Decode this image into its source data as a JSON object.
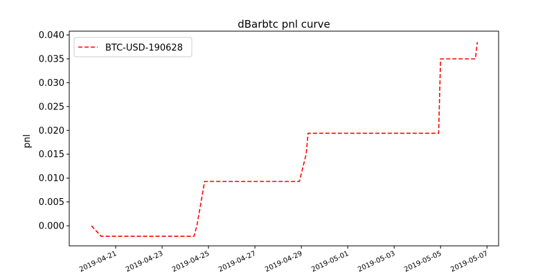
{
  "chart_data": {
    "type": "line",
    "title": "dBarbtc pnl curve",
    "xlabel": "",
    "ylabel": "pnl",
    "xlim": [
      "2019-04-19T00:00",
      "2019-05-07T12:00"
    ],
    "ylim": [
      -0.0042,
      0.0408
    ],
    "x_ticks": [
      "2019-04-21",
      "2019-04-23",
      "2019-04-25",
      "2019-04-27",
      "2019-04-29",
      "2019-05-01",
      "2019-05-03",
      "2019-05-05",
      "2019-05-07"
    ],
    "y_ticks": [
      0.0,
      0.005,
      0.01,
      0.015,
      0.02,
      0.025,
      0.03,
      0.035,
      0.04
    ],
    "y_tick_labels": [
      "0.000",
      "0.005",
      "0.010",
      "0.015",
      "0.020",
      "0.025",
      "0.030",
      "0.035",
      "0.040"
    ],
    "grid": false,
    "legend": "upper left",
    "series": [
      {
        "name": "BTC-USD-190628",
        "color": "#ff0000",
        "line_style": "dashed",
        "x": [
          "2019-04-19T23:00",
          "2019-04-20T09:00",
          "2019-04-24T09:00",
          "2019-04-24T12:00",
          "2019-04-24T20:00",
          "2019-04-28T22:00",
          "2019-04-29T05:00",
          "2019-04-29T07:00",
          "2019-05-04T22:00",
          "2019-05-05T00:00",
          "2019-05-06T12:00",
          "2019-05-06T14:00"
        ],
        "y": [
          0.0,
          -0.0022,
          -0.0022,
          0.0,
          0.0093,
          0.0093,
          0.015,
          0.0194,
          0.0194,
          0.035,
          0.035,
          0.0385
        ]
      }
    ]
  }
}
